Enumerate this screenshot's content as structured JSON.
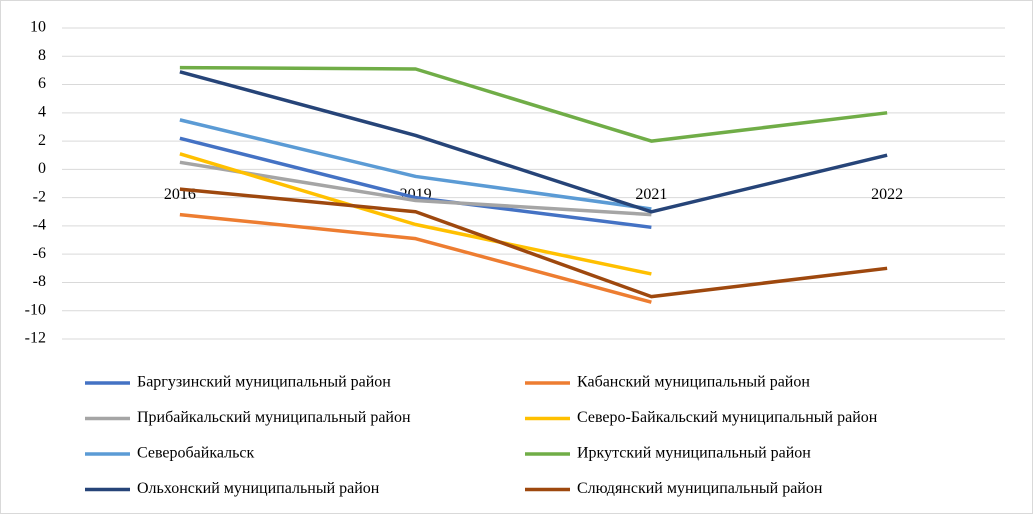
{
  "chart_data": {
    "type": "line",
    "categories": [
      "2016",
      "2019",
      "2021",
      "2022"
    ],
    "series": [
      {
        "name": "Баргузинский муниципальный район",
        "color": "#4472c4",
        "values": [
          2.2,
          -2,
          -4.1,
          null
        ]
      },
      {
        "name": "Кабанский муниципальный район",
        "color": "#ed7d31",
        "values": [
          -3.2,
          -4.9,
          -9.4,
          null
        ]
      },
      {
        "name": "Прибайкальский муниципальный район",
        "color": "#a5a5a5",
        "values": [
          0.5,
          -2.2,
          -3.2,
          null
        ]
      },
      {
        "name": "Северо-Байкальский муниципальный район",
        "color": "#ffc000",
        "values": [
          1.1,
          -3.9,
          -7.4,
          null
        ]
      },
      {
        "name": "Северобайкальск",
        "color": "#5b9bd5",
        "values": [
          3.5,
          -0.5,
          -2.8,
          null
        ]
      },
      {
        "name": "Иркутский муниципальный район",
        "color": "#70ad47",
        "values": [
          7.2,
          7.1,
          2,
          4
        ]
      },
      {
        "name": "Ольхонский муниципальный район",
        "color": "#264478",
        "values": [
          6.9,
          2.4,
          -3,
          1
        ]
      },
      {
        "name": "Слюдянский муниципальный район",
        "color": "#9e480e",
        "values": [
          -1.4,
          -3,
          -9,
          -7
        ]
      }
    ],
    "ylim": [
      -12,
      10
    ],
    "yticks": [
      -12,
      -10,
      -8,
      -6,
      -4,
      -2,
      0,
      2,
      4,
      6,
      8,
      10
    ],
    "grid": true,
    "legend": "bottom"
  }
}
